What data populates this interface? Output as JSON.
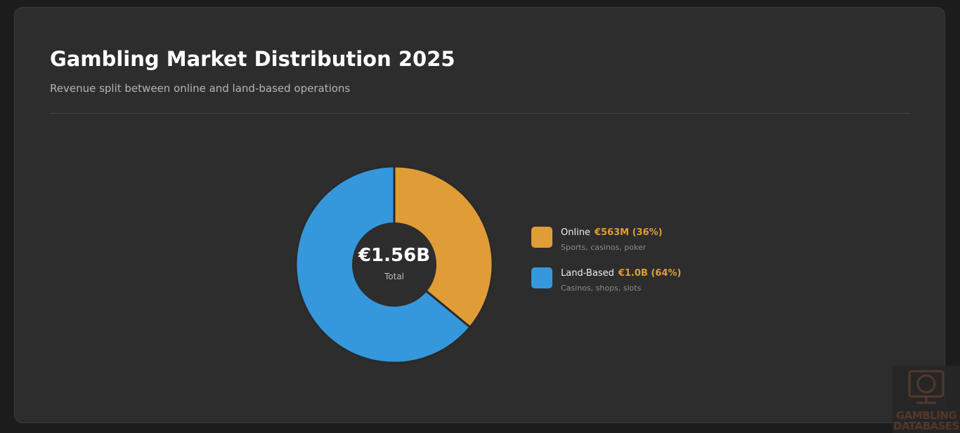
{
  "header": {
    "title": "Gambling Market Distribution 2025",
    "subtitle": "Revenue split between online and land-based operations"
  },
  "chart_data": {
    "type": "pie",
    "donut": true,
    "title": "Gambling Market Distribution 2025",
    "center_value": "€1.56B",
    "center_label": "Total",
    "legend_position": "right",
    "slices": [
      {
        "name": "Online",
        "value_label": "€563M (36%)",
        "value": 563,
        "percent": 36,
        "description": "Sports, casinos, poker",
        "color": "#e09c36"
      },
      {
        "name": "Land-Based",
        "value_label": "€1.0B (64%)",
        "value": 1000,
        "percent": 64,
        "description": "Casinos, shops, slots",
        "color": "#3598dc"
      }
    ]
  },
  "watermark": {
    "line1": "GAMBLING",
    "line2": "DATABASES"
  }
}
